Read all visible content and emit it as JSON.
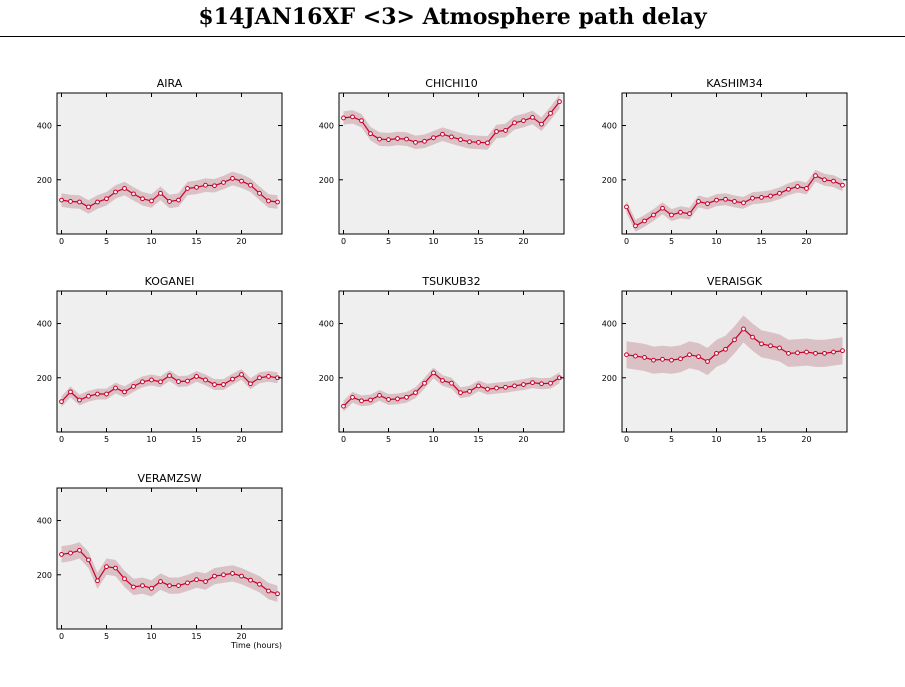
{
  "title": "$14JAN16XF <3>  Atmosphere path delay",
  "chart_data": {
    "type": "line",
    "x_label": "Time (hours)",
    "xlim": [
      -0.5,
      24.5
    ],
    "ylim": [
      0,
      520
    ],
    "x_ticks": [
      0,
      5,
      10,
      15,
      20
    ],
    "y_ticks": [
      200,
      400
    ],
    "grid": false,
    "panels": [
      {
        "name": "AIRA",
        "x": [
          0,
          1,
          2,
          3,
          4,
          5,
          6,
          7,
          8,
          9,
          10,
          11,
          12,
          13,
          14,
          15,
          16,
          17,
          18,
          19,
          20,
          21,
          22,
          23,
          24
        ],
        "y": [
          125,
          120,
          118,
          100,
          118,
          130,
          155,
          168,
          148,
          130,
          122,
          150,
          120,
          125,
          168,
          172,
          180,
          178,
          190,
          205,
          195,
          180,
          150,
          122,
          118
        ],
        "band": 25
      },
      {
        "name": "CHICHI10",
        "x": [
          0,
          1,
          2,
          3,
          4,
          5,
          6,
          7,
          8,
          9,
          10,
          11,
          12,
          13,
          14,
          15,
          16,
          17,
          18,
          19,
          20,
          21,
          22,
          23,
          24
        ],
        "y": [
          428,
          432,
          418,
          370,
          350,
          348,
          352,
          350,
          338,
          342,
          355,
          368,
          358,
          348,
          340,
          338,
          336,
          378,
          382,
          410,
          418,
          430,
          405,
          445,
          488
        ],
        "band": 25
      },
      {
        "name": "KASHIM34",
        "x": [
          0,
          1,
          2,
          3,
          4,
          5,
          6,
          7,
          8,
          9,
          10,
          11,
          12,
          13,
          14,
          15,
          16,
          17,
          18,
          19,
          20,
          21,
          22,
          23,
          24
        ],
        "y": [
          100,
          30,
          48,
          70,
          95,
          70,
          80,
          75,
          120,
          112,
          125,
          128,
          120,
          115,
          132,
          135,
          140,
          150,
          165,
          175,
          168,
          215,
          200,
          195,
          180
        ],
        "band": 22
      },
      {
        "name": "KOGANEI",
        "x": [
          0,
          1,
          2,
          3,
          4,
          5,
          6,
          7,
          8,
          9,
          10,
          11,
          12,
          13,
          14,
          15,
          16,
          17,
          18,
          19,
          20,
          21,
          22,
          23,
          24
        ],
        "y": [
          112,
          148,
          118,
          132,
          140,
          140,
          162,
          148,
          168,
          185,
          192,
          185,
          208,
          186,
          188,
          205,
          192,
          175,
          175,
          195,
          212,
          178,
          200,
          205,
          200
        ],
        "band": 20
      },
      {
        "name": "TSUKUB32",
        "x": [
          0,
          1,
          2,
          3,
          4,
          5,
          6,
          7,
          8,
          9,
          10,
          11,
          12,
          13,
          14,
          15,
          16,
          17,
          18,
          19,
          20,
          21,
          22,
          23,
          24
        ],
        "y": [
          95,
          128,
          115,
          118,
          135,
          120,
          122,
          128,
          145,
          180,
          218,
          190,
          180,
          145,
          150,
          170,
          158,
          162,
          165,
          170,
          175,
          182,
          178,
          180,
          200
        ],
        "band": 20
      },
      {
        "name": "VERAISGK",
        "x": [
          0,
          1,
          2,
          3,
          4,
          5,
          6,
          7,
          8,
          9,
          10,
          11,
          12,
          13,
          14,
          15,
          16,
          17,
          18,
          19,
          20,
          21,
          22,
          23,
          24
        ],
        "y": [
          285,
          280,
          275,
          265,
          268,
          265,
          270,
          285,
          278,
          260,
          290,
          305,
          340,
          380,
          350,
          325,
          318,
          310,
          290,
          292,
          295,
          290,
          290,
          295,
          300
        ],
        "band": 50
      },
      {
        "name": "VERAMZSW",
        "x": [
          0,
          1,
          2,
          3,
          4,
          5,
          6,
          7,
          8,
          9,
          10,
          11,
          12,
          13,
          14,
          15,
          16,
          17,
          18,
          19,
          20,
          21,
          22,
          23,
          24
        ],
        "y": [
          275,
          280,
          290,
          255,
          178,
          230,
          225,
          185,
          155,
          160,
          150,
          175,
          160,
          160,
          170,
          182,
          175,
          195,
          200,
          205,
          195,
          180,
          165,
          140,
          130
        ],
        "band": 30
      }
    ]
  },
  "colors": {
    "line": "#c8002a",
    "band": "#d9c1c6",
    "panel_bg": "#efefef",
    "axis": "#000000"
  }
}
